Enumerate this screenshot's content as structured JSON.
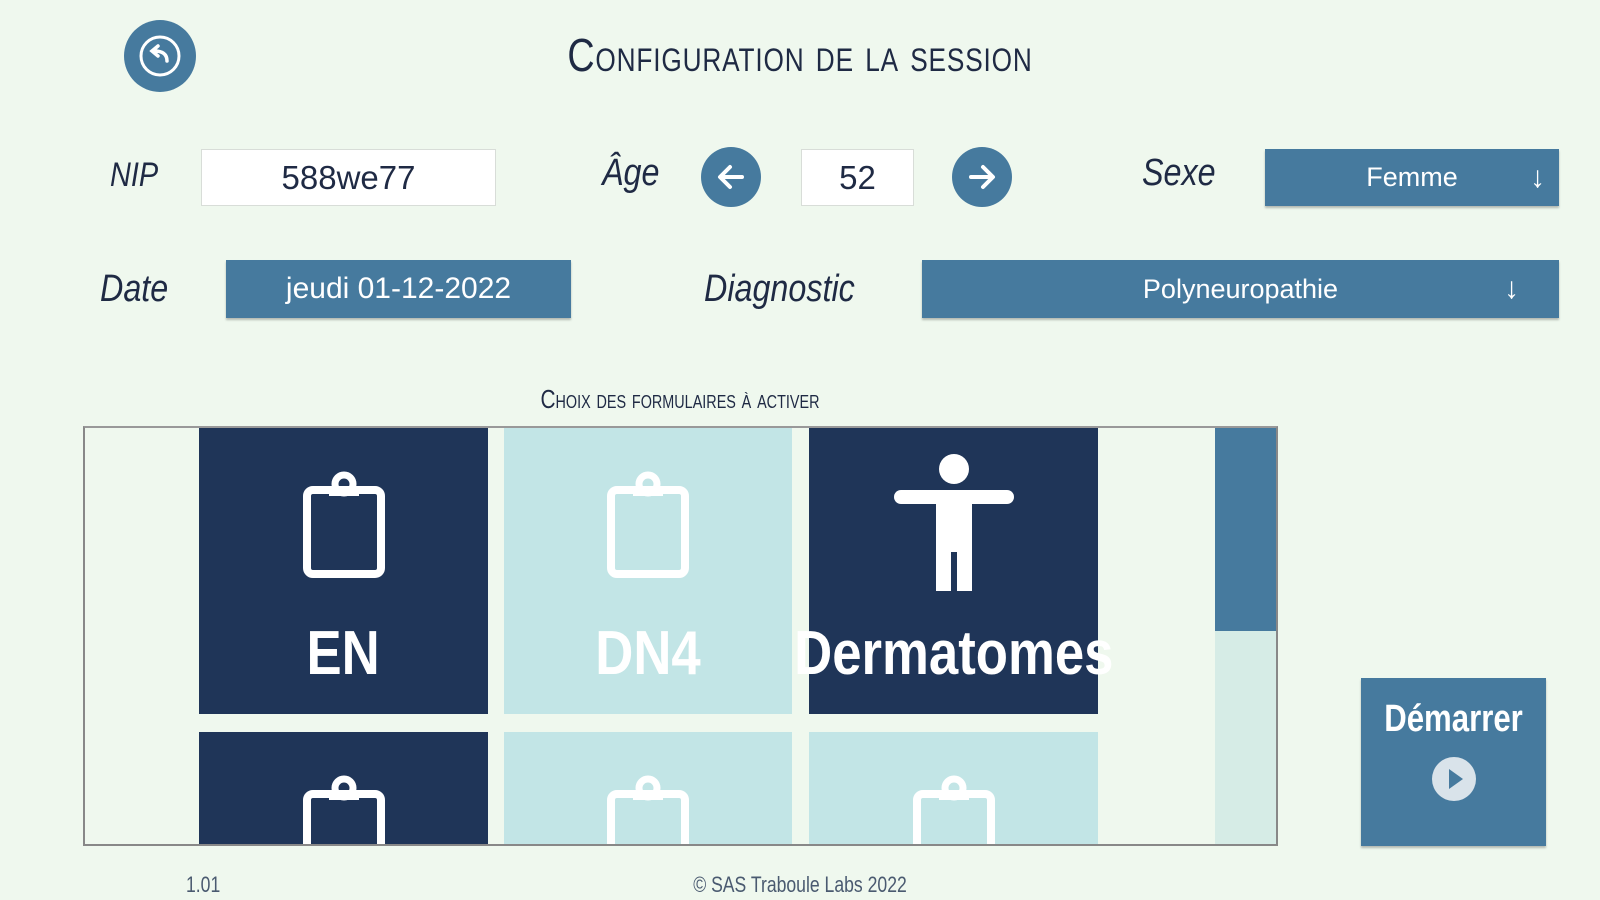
{
  "header": {
    "title": "Configuration de la session",
    "back_icon": "back-arrow-circle-icon"
  },
  "form": {
    "nip_label": "NIP",
    "nip_value": "588we77",
    "age_label": "Âge",
    "age_value": "52",
    "sexe_label": "Sexe",
    "sexe_value": "Femme",
    "date_label": "Date",
    "date_value": "jeudi 01-12-2022",
    "diagnostic_label": "Diagnostic",
    "diagnostic_value": "Polyneuropathie"
  },
  "forms_section": {
    "label": "Choix des formulaires à activer",
    "tiles": [
      {
        "label": "EN",
        "icon": "clipboard-icon",
        "active": true
      },
      {
        "label": "DN4",
        "icon": "clipboard-icon",
        "active": false
      },
      {
        "label": "Dermatomes",
        "icon": "person-icon",
        "active": true
      },
      {
        "label": "",
        "icon": "clipboard-icon",
        "active": true
      },
      {
        "label": "",
        "icon": "clipboard-icon",
        "active": false
      },
      {
        "label": "",
        "icon": "clipboard-icon",
        "active": false
      }
    ]
  },
  "start_button": {
    "label": "Démarrer",
    "icon": "play-circle-icon"
  },
  "footer": {
    "version": "1.01",
    "copyright": "© SAS Traboule Labs 2022"
  },
  "colors": {
    "background": "#eff8ee",
    "navy": "#1f3558",
    "steel": "#467a9e",
    "inactive": "#c2e5e6"
  }
}
